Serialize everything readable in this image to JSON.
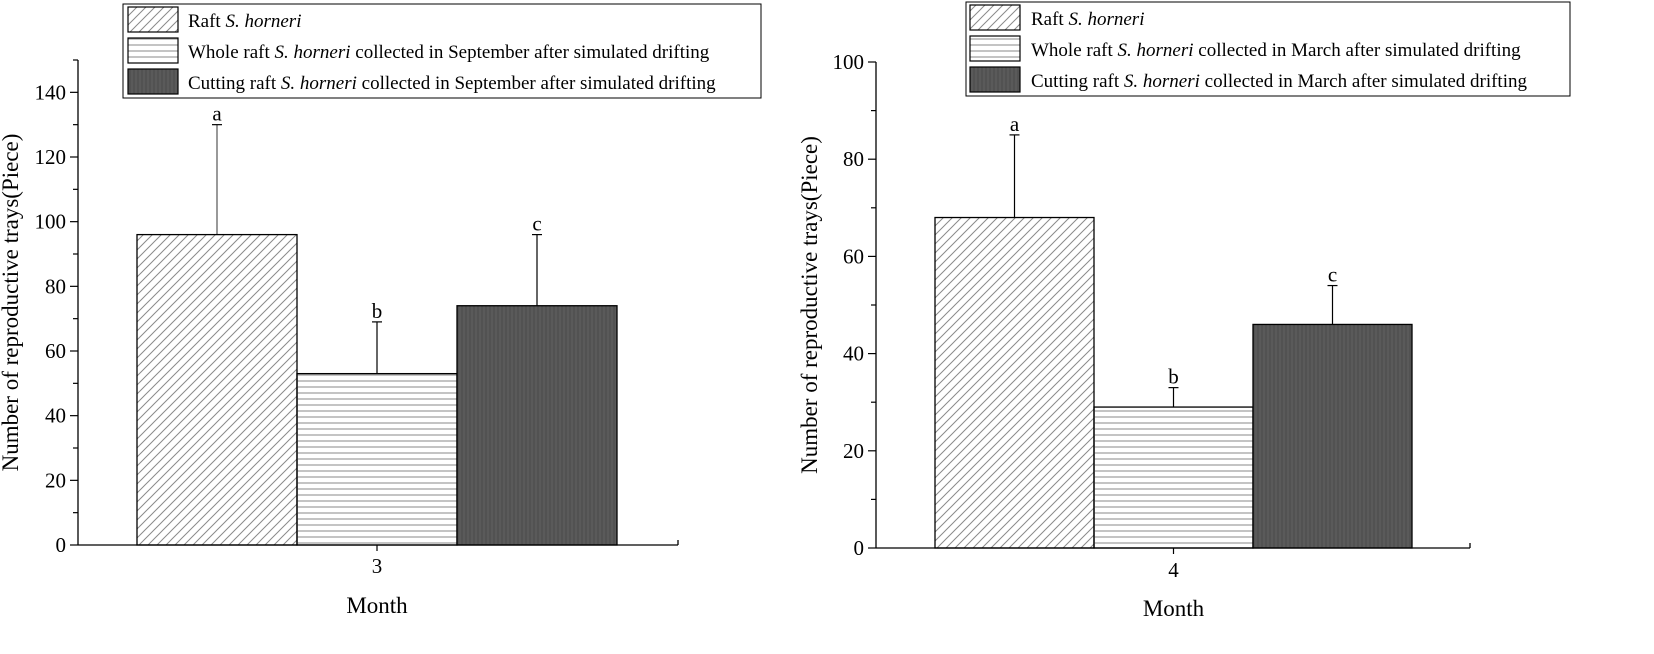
{
  "chart_data": [
    {
      "type": "bar",
      "xlabel": "Month",
      "ylabel": "Number of reproductive trays(Piece)",
      "ylim": [
        0,
        150
      ],
      "yticks": [
        0,
        20,
        40,
        60,
        80,
        100,
        120,
        140
      ],
      "categories": [
        "3"
      ],
      "legend_position": "top",
      "series": [
        {
          "name": "Raft S. horneri",
          "name_parts": [
            {
              "text": "Raft ",
              "italic": false
            },
            {
              "text": "S. horneri",
              "italic": true
            }
          ],
          "values": [
            96
          ],
          "error": [
            34
          ],
          "sig": "a",
          "pattern": "diagonal"
        },
        {
          "name": "Whole raft S. horneri collected in September after simulated drifting",
          "name_parts": [
            {
              "text": "Whole raft ",
              "italic": false
            },
            {
              "text": "S. horneri",
              "italic": true
            },
            {
              "text": " collected in September after simulated drifting",
              "italic": false
            }
          ],
          "values": [
            53
          ],
          "error": [
            16
          ],
          "sig": "b",
          "pattern": "horizontal"
        },
        {
          "name": "Cutting raft S. horneri collected in September after simulated drifting",
          "name_parts": [
            {
              "text": "Cutting raft ",
              "italic": false
            },
            {
              "text": "S. horneri",
              "italic": true
            },
            {
              "text": " collected in September after simulated drifting",
              "italic": false
            }
          ],
          "values": [
            74
          ],
          "error": [
            22
          ],
          "sig": "c",
          "pattern": "vertical-dark"
        }
      ]
    },
    {
      "type": "bar",
      "xlabel": "Month",
      "ylabel": "Number of reproductive trays(Piece)",
      "ylim": [
        0,
        100
      ],
      "yticks": [
        0,
        20,
        40,
        60,
        80,
        100
      ],
      "categories": [
        "4"
      ],
      "legend_position": "top",
      "series": [
        {
          "name": "Raft S. horneri",
          "name_parts": [
            {
              "text": "Raft ",
              "italic": false
            },
            {
              "text": "S. horneri",
              "italic": true
            }
          ],
          "values": [
            68
          ],
          "error": [
            17
          ],
          "sig": "a",
          "pattern": "diagonal"
        },
        {
          "name": "Whole raft S. horneri collected in March after simulated drifting",
          "name_parts": [
            {
              "text": "Whole raft ",
              "italic": false
            },
            {
              "text": "S. horneri",
              "italic": true
            },
            {
              "text": " collected in March after simulated drifting",
              "italic": false
            }
          ],
          "values": [
            29
          ],
          "error": [
            4
          ],
          "sig": "b",
          "pattern": "horizontal"
        },
        {
          "name": "Cutting raft S. horneri collected in March after simulated drifting",
          "name_parts": [
            {
              "text": "Cutting raft ",
              "italic": false
            },
            {
              "text": "S. horneri",
              "italic": true
            },
            {
              "text": " collected in March after simulated drifting",
              "italic": false
            }
          ],
          "values": [
            46
          ],
          "error": [
            8
          ],
          "sig": "c",
          "pattern": "vertical-dark"
        }
      ]
    }
  ],
  "colors": {
    "dark_fill": "#5a5a5a",
    "light_fill": "#ffffff",
    "stroke": "#000000",
    "hatch": "#8a8a8a"
  }
}
